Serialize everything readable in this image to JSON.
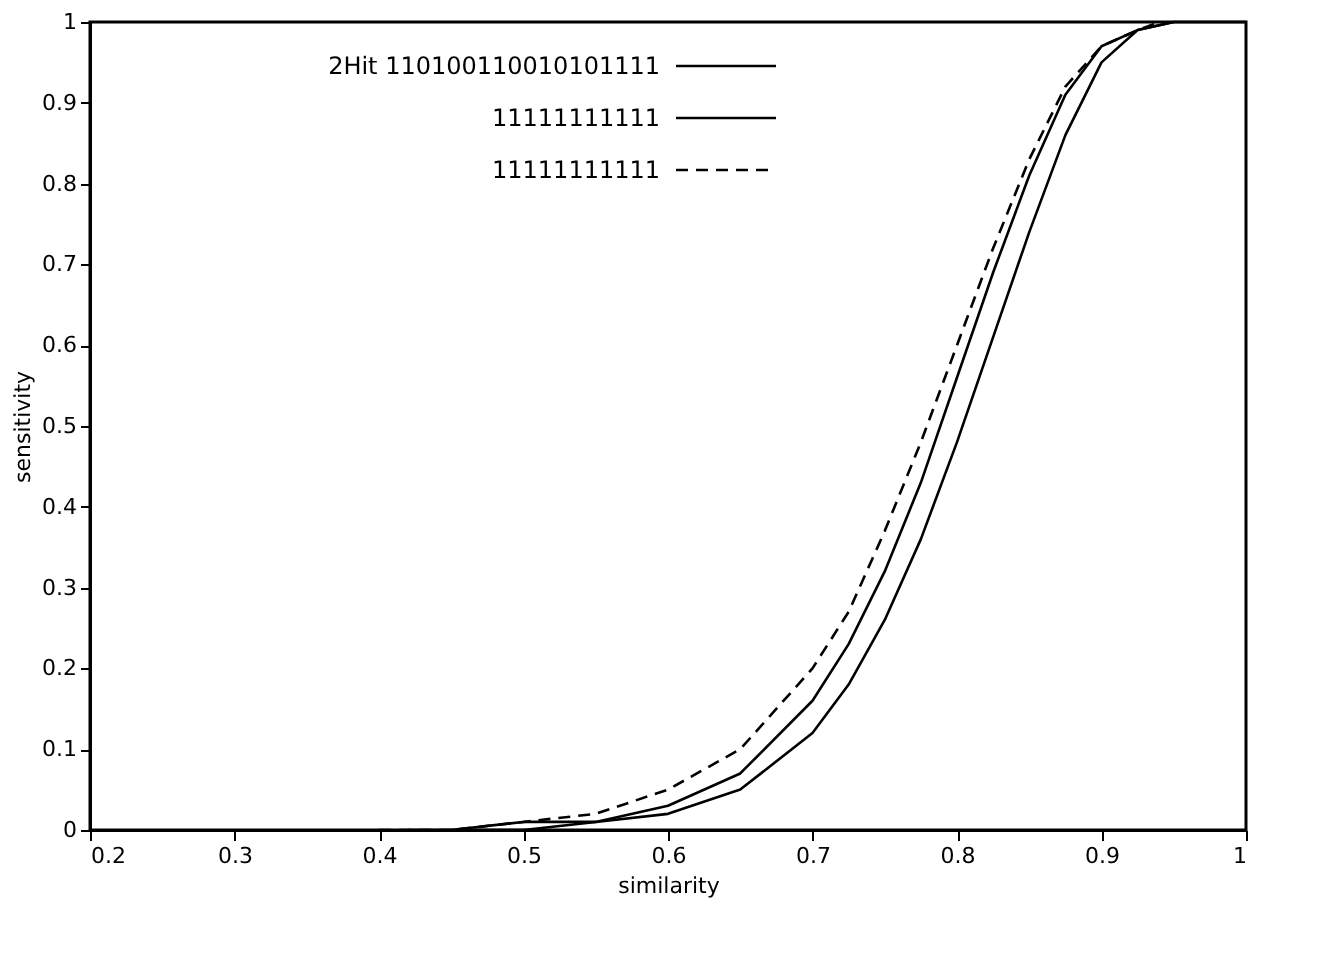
{
  "chart_data": {
    "type": "line",
    "xlabel": "similarity",
    "ylabel": "sensitivity",
    "series": [
      {
        "name": "2Hit 110100110010101111",
        "color": "#000000",
        "line_style": "solid",
        "x": [
          0.45,
          0.5,
          0.55,
          0.6,
          0.65,
          0.7,
          0.725,
          0.75,
          0.775,
          0.8,
          0.825,
          0.85,
          0.875,
          0.9,
          0.925,
          0.95,
          1.0
        ],
        "values": [
          0,
          0,
          0.01,
          0.02,
          0.05,
          0.12,
          0.18,
          0.26,
          0.36,
          0.48,
          0.61,
          0.74,
          0.86,
          0.95,
          0.99,
          1,
          1
        ]
      },
      {
        "name": "11111111111",
        "color": "#000000",
        "line_style": "solid",
        "x": [
          0.42,
          0.45,
          0.5,
          0.55,
          0.6,
          0.65,
          0.7,
          0.725,
          0.75,
          0.775,
          0.8,
          0.825,
          0.85,
          0.875,
          0.9,
          0.925,
          0.95
        ],
        "values": [
          0,
          0,
          0.01,
          0.01,
          0.03,
          0.07,
          0.16,
          0.23,
          0.32,
          0.43,
          0.56,
          0.69,
          0.81,
          0.91,
          0.97,
          0.99,
          1
        ]
      },
      {
        "name": "11111111111",
        "color": "#000000",
        "line_style": "dashed",
        "x": [
          0.4,
          0.45,
          0.5,
          0.55,
          0.6,
          0.65,
          0.7,
          0.725,
          0.75,
          0.775,
          0.8,
          0.825,
          0.85,
          0.875,
          0.9,
          0.925,
          0.94
        ],
        "values": [
          0,
          0,
          0.01,
          0.02,
          0.05,
          0.1,
          0.2,
          0.27,
          0.37,
          0.48,
          0.6,
          0.72,
          0.83,
          0.92,
          0.97,
          0.99,
          1
        ]
      }
    ],
    "xlim": [
      0.2,
      1
    ],
    "xticks": [
      0.2,
      0.3,
      0.4,
      0.5,
      0.6,
      0.7,
      0.8,
      0.9,
      1
    ],
    "ylim": [
      0,
      1
    ],
    "yticks": [
      0,
      0.1,
      0.2,
      0.3,
      0.4,
      0.5,
      0.6,
      0.7,
      0.8,
      0.9,
      1
    ],
    "grid": false,
    "legend": "top left",
    "marker": "none"
  }
}
